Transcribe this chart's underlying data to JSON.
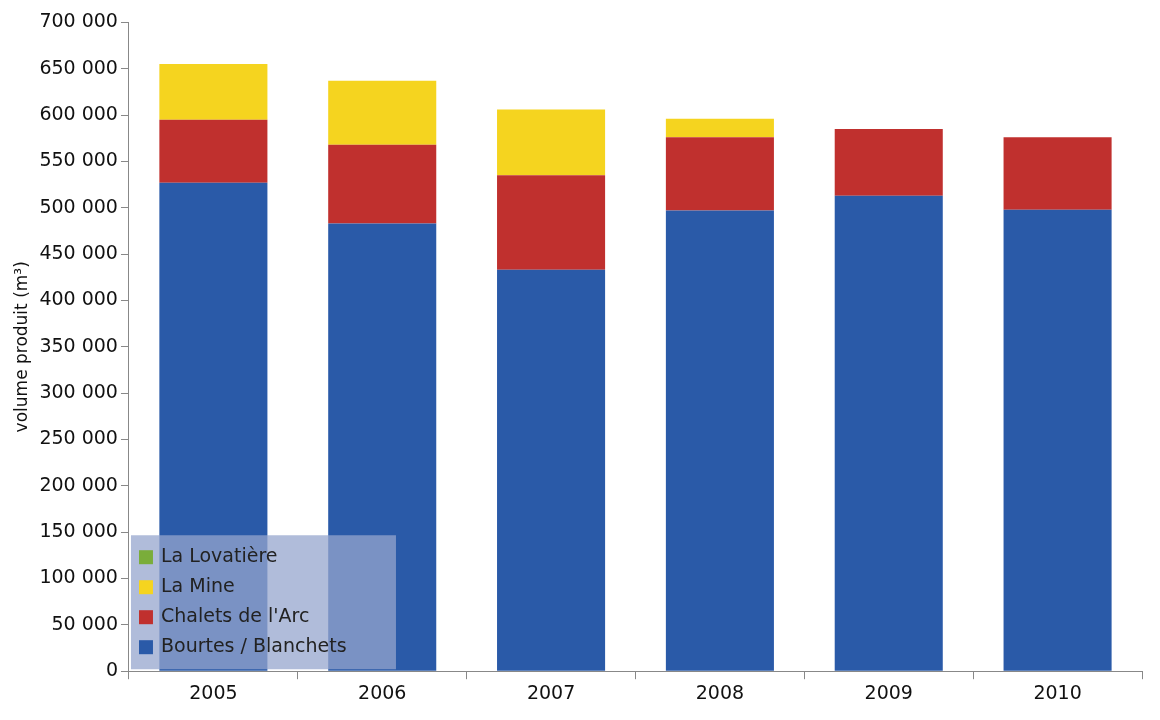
{
  "chart_data": {
    "type": "bar",
    "stacked": true,
    "ylabel": "volume produit (m³)",
    "categories": [
      "2005",
      "2006",
      "2007",
      "2008",
      "2009",
      "2010"
    ],
    "series": [
      {
        "name": "Bourtes / Blanchets",
        "color": "#2a5aa8",
        "values": [
          527000,
          483000,
          433000,
          497000,
          513000,
          498000
        ]
      },
      {
        "name": "Chalets de l'Arc",
        "color": "#c0302e",
        "values": [
          68000,
          85000,
          102000,
          79000,
          72000,
          78000
        ]
      },
      {
        "name": "La Mine",
        "color": "#f5d41f",
        "values": [
          60000,
          69000,
          71000,
          20000,
          0,
          0
        ]
      },
      {
        "name": "La Lovatière",
        "color": "#7aad3a",
        "values": [
          0,
          0,
          0,
          0,
          0,
          0
        ]
      }
    ],
    "ylim": [
      0,
      700000
    ],
    "yticks": [
      {
        "value": 0,
        "label": "0"
      },
      {
        "value": 50000,
        "label": "50 000"
      },
      {
        "value": 100000,
        "label": "100 000"
      },
      {
        "value": 150000,
        "label": "150 000"
      },
      {
        "value": 200000,
        "label": "200 000"
      },
      {
        "value": 250000,
        "label": "250 000"
      },
      {
        "value": 300000,
        "label": "300 000"
      },
      {
        "value": 350000,
        "label": "350 000"
      },
      {
        "value": 400000,
        "label": "400 000"
      },
      {
        "value": 450000,
        "label": "450 000"
      },
      {
        "value": 500000,
        "label": "500 000"
      },
      {
        "value": 550000,
        "label": "550 000"
      },
      {
        "value": 600000,
        "label": "600 000"
      },
      {
        "value": 650000,
        "label": "650 000"
      },
      {
        "value": 700000,
        "label": "700 000"
      }
    ],
    "grid": false,
    "legend": "bottom left"
  }
}
